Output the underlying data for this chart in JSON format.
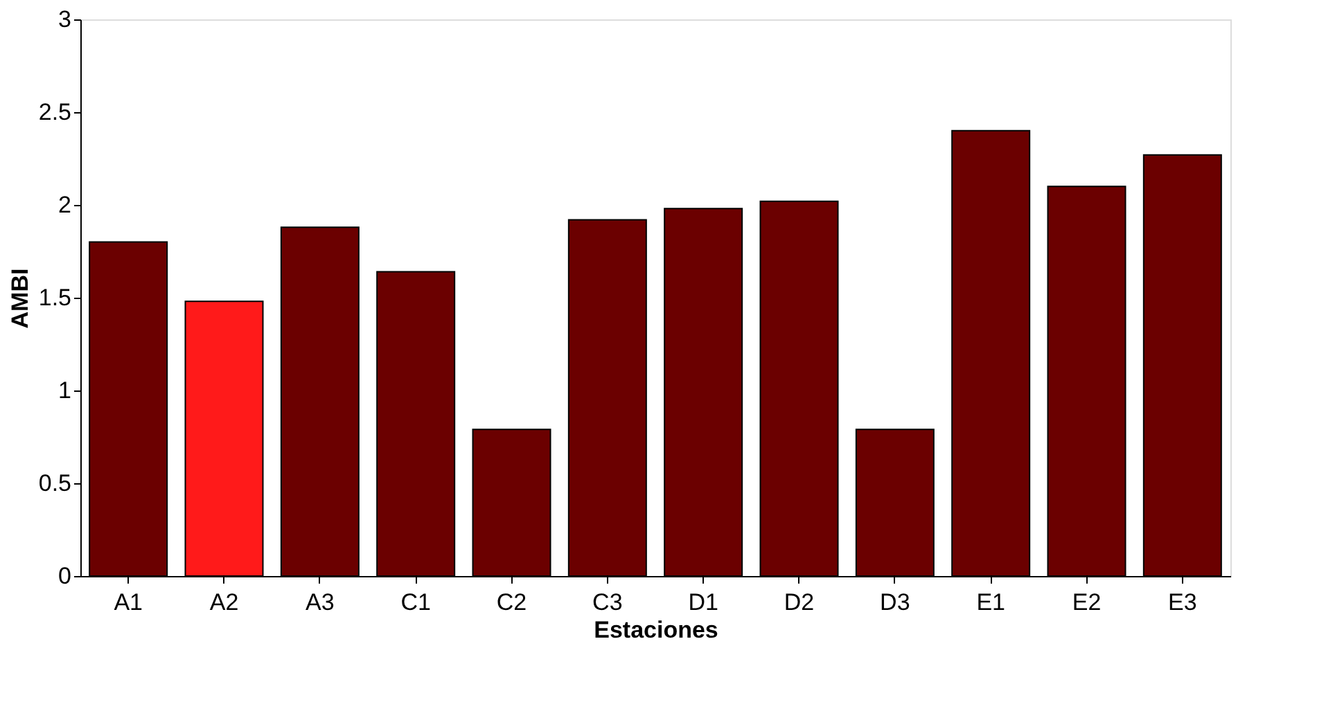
{
  "chart_data": {
    "type": "bar",
    "xlabel": "Estaciones",
    "ylabel": "AMBI",
    "categories": [
      "A1",
      "A2",
      "A3",
      "C1",
      "C2",
      "C3",
      "D1",
      "D2",
      "D3",
      "E1",
      "E2",
      "E3"
    ],
    "values": [
      1.8,
      1.48,
      1.88,
      1.64,
      0.79,
      1.92,
      1.98,
      2.02,
      0.79,
      2.4,
      2.1,
      2.27
    ],
    "colors": [
      "#6b0000",
      "#ff1a1a",
      "#6b0000",
      "#6b0000",
      "#6b0000",
      "#6b0000",
      "#6b0000",
      "#6b0000",
      "#6b0000",
      "#6b0000",
      "#6b0000",
      "#6b0000"
    ],
    "ylim": [
      0,
      3
    ],
    "yticks": [
      0,
      0.5,
      1,
      1.5,
      2,
      2.5,
      3
    ],
    "grid": false
  }
}
